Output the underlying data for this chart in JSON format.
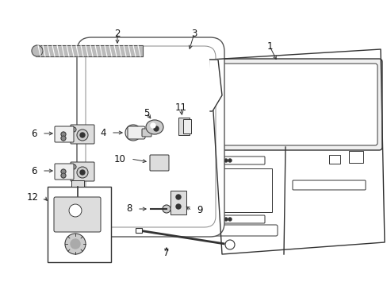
{
  "bg_color": "#ffffff",
  "fig_width": 4.89,
  "fig_height": 3.6,
  "dpi": 100,
  "lc": "#333333",
  "lc_light": "#666666"
}
